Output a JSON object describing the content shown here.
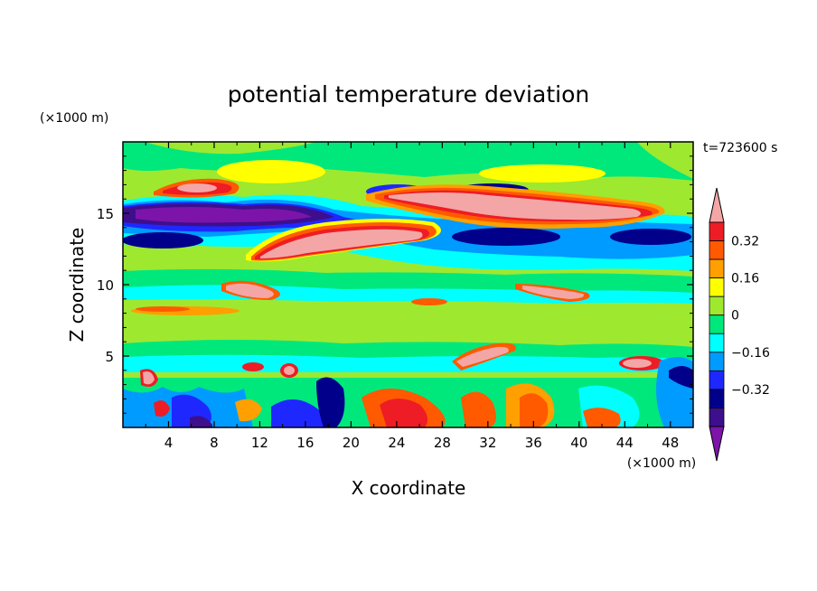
{
  "chart_data": {
    "type": "heatmap",
    "title": "potential temperature deviation",
    "xlabel": "X coordinate",
    "ylabel": "Z coordinate",
    "x_unit": "(×1000 m)",
    "y_unit": "(×1000 m)",
    "time_label": "t=723600 s",
    "xlim": [
      0,
      50
    ],
    "ylim": [
      0,
      20
    ],
    "x_ticks": [
      4,
      8,
      12,
      16,
      20,
      24,
      28,
      32,
      36,
      40,
      44,
      48
    ],
    "y_ticks": [
      5,
      10,
      15
    ],
    "colorbar": {
      "levels": [
        -0.48,
        -0.4,
        -0.32,
        -0.24,
        -0.16,
        -0.08,
        0,
        0.08,
        0.16,
        0.24,
        0.32,
        0.4
      ],
      "labeled_values": [
        "0.32",
        "0.16",
        "0",
        "−0.16",
        "−0.32"
      ],
      "labeled_levels": [
        0.32,
        0.16,
        0,
        -0.16,
        -0.32
      ],
      "colors_top_to_bottom": [
        "#f4a6a6",
        "#ee1c24",
        "#ff5a00",
        "#ff9f00",
        "#ffff00",
        "#9fe830",
        "#00e87c",
        "#00ffff",
        "#009bff",
        "#1f27ff",
        "#00008b",
        "#3d0f8c",
        "#7c14aa"
      ]
    },
    "colors": {
      "background": "#9fe830",
      "pink": "#f4a6a6",
      "red": "#ee1c24",
      "orange": "#ff5a00",
      "amber": "#ff9f00",
      "yellow": "#ffff00",
      "green": "#9fe830",
      "teal": "#00e87c",
      "cyan": "#00ffff",
      "sky": "#009bff",
      "blue": "#1f27ff",
      "navy": "#00008b",
      "indigo": "#3d0f8c",
      "purple": "#7c14aa"
    }
  }
}
